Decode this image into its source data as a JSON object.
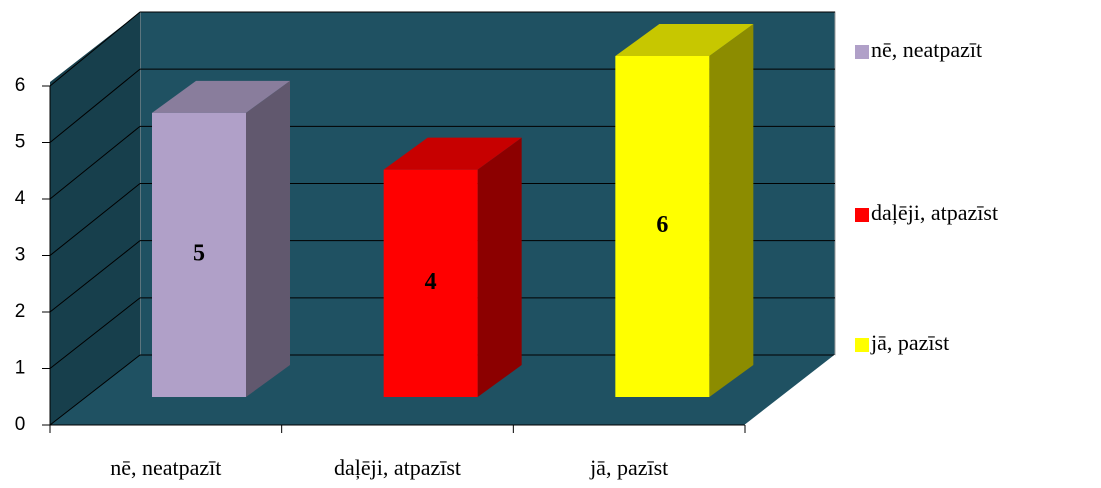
{
  "chart_data": {
    "type": "bar3d",
    "categories": [
      "nē, neatpazīt",
      "daļēji, atpazīst",
      "jā, pazīst"
    ],
    "values": [
      5,
      4,
      6
    ],
    "colors": [
      "#b0a0c8",
      "#ff0000",
      "#ffff00"
    ],
    "ylim": [
      0,
      6
    ],
    "yticks": [
      0,
      1,
      2,
      3,
      4,
      5,
      6
    ],
    "grid": true,
    "legend": "right"
  }
}
